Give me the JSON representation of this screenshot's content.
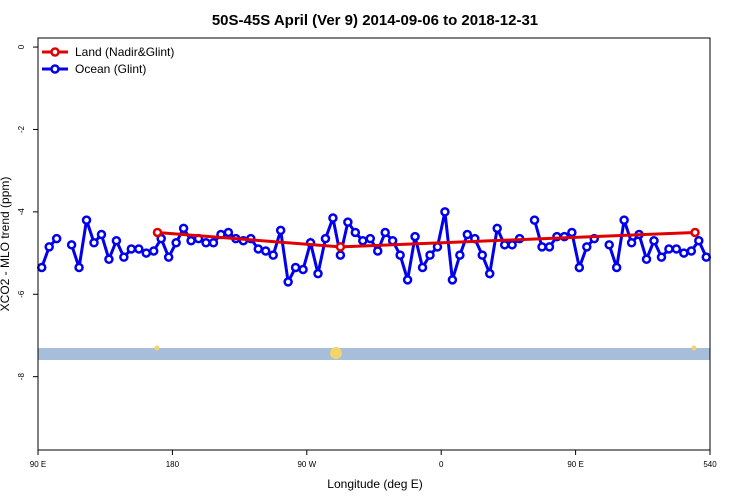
{
  "chart_data": {
    "type": "line",
    "title": "50S-45S April (Ver 9)   2014-09-06 to 2018-12-31",
    "x_label": "Longitude (deg E)",
    "y_label": "XCO2 - MLO trend (ppm)",
    "xlim": [
      90,
      540
    ],
    "ylim": [
      -9.78,
      0.22
    ],
    "xticks": [
      {
        "value": 90,
        "label": "90 E"
      },
      180,
      {
        "value": 270,
        "label": "90 W"
      },
      {
        "value": 360,
        "label": "0"
      },
      {
        "value": 450,
        "label": "90 E"
      },
      540
    ],
    "yticks": [
      0,
      -2,
      -4,
      -6,
      -8
    ],
    "legend": "top-left",
    "series": [
      {
        "name": "Land (Nadir&Glint)",
        "color": "#e00000",
        "x": [
          170,
          292.5,
          530
        ],
        "values": [
          -4.5,
          -4.85,
          -4.5
        ]
      },
      {
        "name": "Ocean (Glint)",
        "color": "#0000ee",
        "x": [
          92.5,
          97.5,
          102.5,
          107.5,
          112.5,
          117.5,
          122.5,
          127.5,
          132.5,
          137.5,
          142.5,
          147.5,
          152.5,
          157.5,
          162.5,
          167.5,
          172.5,
          177.5,
          182.5,
          187.5,
          192.5,
          197.5,
          202.5,
          207.5,
          212.5,
          217.5,
          222.5,
          227.5,
          232.5,
          237.5,
          242.5,
          247.5,
          252.5,
          257.5,
          262.5,
          267.5,
          272.5,
          277.5,
          282.5,
          287.5,
          292.5,
          297.5,
          302.5,
          307.5,
          312.5,
          317.5,
          322.5,
          327.5,
          332.5,
          337.5,
          342.5,
          347.5,
          352.5,
          357.5,
          362.5,
          367.5,
          372.5,
          377.5,
          382.5,
          387.5,
          392.5,
          397.5,
          402.5,
          407.5,
          412.5,
          417.5,
          422.5,
          427.5,
          432.5,
          437.5,
          442.5,
          447.5,
          452.5,
          457.5,
          462.5,
          467.5,
          472.5,
          477.5,
          482.5,
          487.5,
          492.5,
          497.5,
          502.5,
          507.5,
          512.5,
          517.5,
          522.5,
          527.5,
          532.5,
          537.5
        ],
        "values": [
          -5.35,
          -4.85,
          -4.65,
          null,
          -4.8,
          -5.35,
          -4.2,
          -4.75,
          -4.55,
          -5.15,
          -4.7,
          -5.1,
          -4.9,
          -4.9,
          -5.0,
          -4.95,
          -4.65,
          -5.1,
          -4.75,
          -4.4,
          -4.7,
          -4.65,
          -4.75,
          -4.75,
          -4.55,
          -4.5,
          -4.65,
          -4.7,
          -4.65,
          -4.9,
          -4.95,
          -5.05,
          -4.45,
          -5.7,
          -5.35,
          -5.4,
          -4.75,
          -5.5,
          -4.65,
          -4.15,
          -5.05,
          -4.25,
          -4.5,
          -4.7,
          -4.65,
          -4.95,
          -4.5,
          -4.7,
          -5.05,
          -5.65,
          -4.6,
          -5.35,
          -5.05,
          -4.85,
          -4.0,
          -5.65,
          -5.05,
          -4.55,
          -4.65,
          -5.05,
          -5.5,
          -4.4,
          -4.8,
          -4.8,
          -4.65,
          null,
          -4.2,
          -4.85,
          -4.85,
          -4.6,
          -4.6,
          -4.5,
          -5.35,
          -4.85,
          -4.65,
          null,
          -4.8,
          -5.35,
          -4.2,
          -4.75,
          -4.55,
          -5.15,
          -4.7,
          -5.1,
          -4.9,
          -4.9,
          -5.0,
          -4.95,
          -4.7,
          -5.1
        ]
      }
    ]
  }
}
